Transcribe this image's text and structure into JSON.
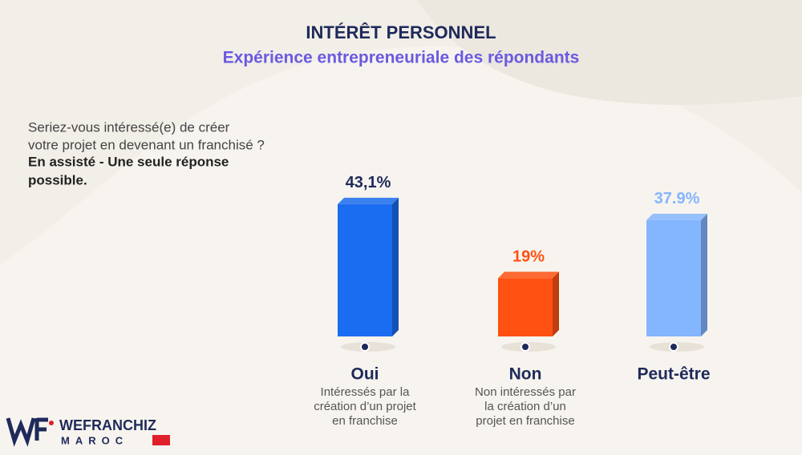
{
  "chart_data": {
    "type": "bar3d",
    "title": "INTÉRÊT PERSONNEL",
    "subtitle": "Expérience entrepreneuriale des répondants",
    "question": [
      "Seriez-vous intéressé(e) de créer",
      "votre projet en devenant un franchisé ?"
    ],
    "note": [
      "En assisté - Une seule réponse",
      "possible."
    ],
    "categories": [
      "Oui",
      "Non",
      "Peut-être"
    ],
    "descriptions": [
      [
        "Intéressés par la",
        "création d’un projet",
        "en franchise"
      ],
      [
        "Non intéressés par",
        "la création d’un",
        "projet en franchise"
      ],
      []
    ],
    "values": [
      43.1,
      19,
      37.9
    ],
    "value_labels": [
      "43,1%",
      "19%",
      "37.9%"
    ],
    "colors": [
      "#1a6cf0",
      "#ff5112",
      "#84b5ff"
    ],
    "label_colors": [
      "#1e2a5a",
      "#ff5112",
      "#84b5ff"
    ]
  },
  "logo": {
    "name": "WEFRANCHIZ",
    "country": "MAROC"
  }
}
